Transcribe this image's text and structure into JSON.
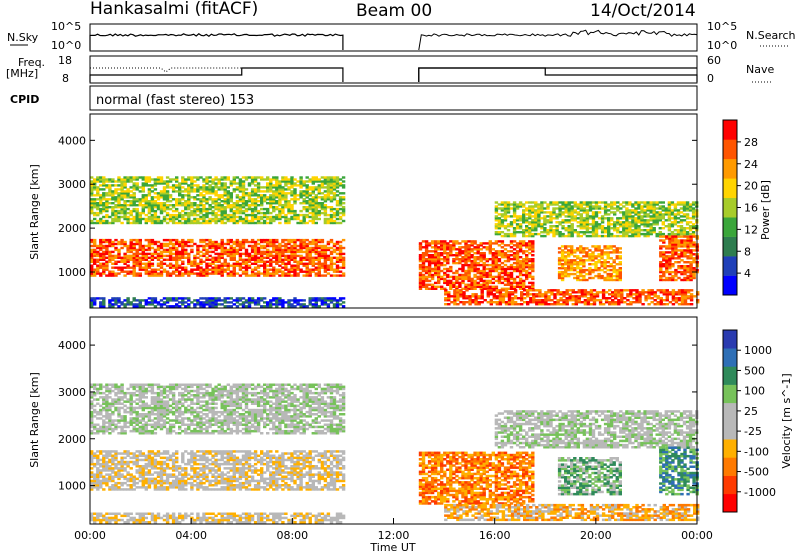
{
  "header": {
    "station": "Hankasalmi (fitACF)",
    "beam": "Beam 00",
    "date": "14/Oct/2014",
    "mode_line": "normal (fast stereo) 153"
  },
  "strips": {
    "nsky": {
      "label": "N.Sky",
      "ticks": [
        "10^5",
        "10^0"
      ]
    },
    "nsearch": {
      "label": "N.Search",
      "ticks": [
        "10^5",
        "10^0"
      ]
    },
    "freq": {
      "label_top": "Freq.",
      "label_bottom": "[MHz]",
      "ticks": [
        "18",
        "8"
      ]
    },
    "nave": {
      "label": "Nave",
      "ticks": [
        "60",
        "0"
      ]
    },
    "cpid": {
      "label": "CPID"
    }
  },
  "colors": {
    "power": [
      "#0000ff",
      "#1f3fb8",
      "#2e7d4f",
      "#3aa63a",
      "#a7cc2a",
      "#ffd400",
      "#ff9a00",
      "#ff5500",
      "#ff0000"
    ],
    "velocity": [
      "#2a3bb0",
      "#2e6fb6",
      "#2f8a5a",
      "#77c25a",
      "#b8b8b8",
      "#b8b8b8",
      "#ffb000",
      "#ff7a00",
      "#ff3a00",
      "#ff0000"
    ]
  },
  "chart_data": [
    {
      "type": "heatmap",
      "title": "",
      "xlabel": "",
      "ylabel": "Slant Range [km]",
      "xlim": [
        "00:00",
        "24:00"
      ],
      "ylim": [
        180,
        4600
      ],
      "yticks": [
        "1000",
        "2000",
        "3000",
        "4000"
      ],
      "data_gap": [
        "10:00",
        "13:00"
      ],
      "colorbar": {
        "label": "Power [dB]",
        "ticks": [
          "4",
          "8",
          "12",
          "16",
          "20",
          "24",
          "28"
        ]
      },
      "features": [
        {
          "name": "near-range band",
          "t": [
            "00:00",
            "10:00"
          ],
          "range": [
            900,
            1700
          ],
          "power": "20-30"
        },
        {
          "name": "far-range band",
          "t": [
            "00:00",
            "10:00"
          ],
          "range": [
            2100,
            3100
          ],
          "power": "8-24"
        },
        {
          "name": "afternoon arc",
          "t": [
            "13:00",
            "17:30"
          ],
          "range": [
            600,
            1700
          ],
          "power": "12-30"
        },
        {
          "name": "evening arc",
          "t": [
            "16:00",
            "24:00"
          ],
          "range": [
            1800,
            2600
          ],
          "power": "8-20"
        }
      ]
    },
    {
      "type": "heatmap",
      "title": "",
      "xlabel": "Time UT",
      "ylabel": "Slant Range [km]",
      "xlim": [
        "00:00",
        "24:00"
      ],
      "ylim": [
        180,
        4600
      ],
      "xticks": [
        "00:00",
        "04:00",
        "08:00",
        "12:00",
        "16:00",
        "20:00",
        "00:00"
      ],
      "yticks": [
        "1000",
        "2000",
        "3000",
        "4000"
      ],
      "data_gap": [
        "10:00",
        "13:00"
      ],
      "colorbar": {
        "label": "Velocity [m s^-1]",
        "ticks": [
          "1000",
          "500",
          "100",
          "25",
          "-25",
          "-100",
          "-500",
          "-1000"
        ]
      }
    }
  ]
}
